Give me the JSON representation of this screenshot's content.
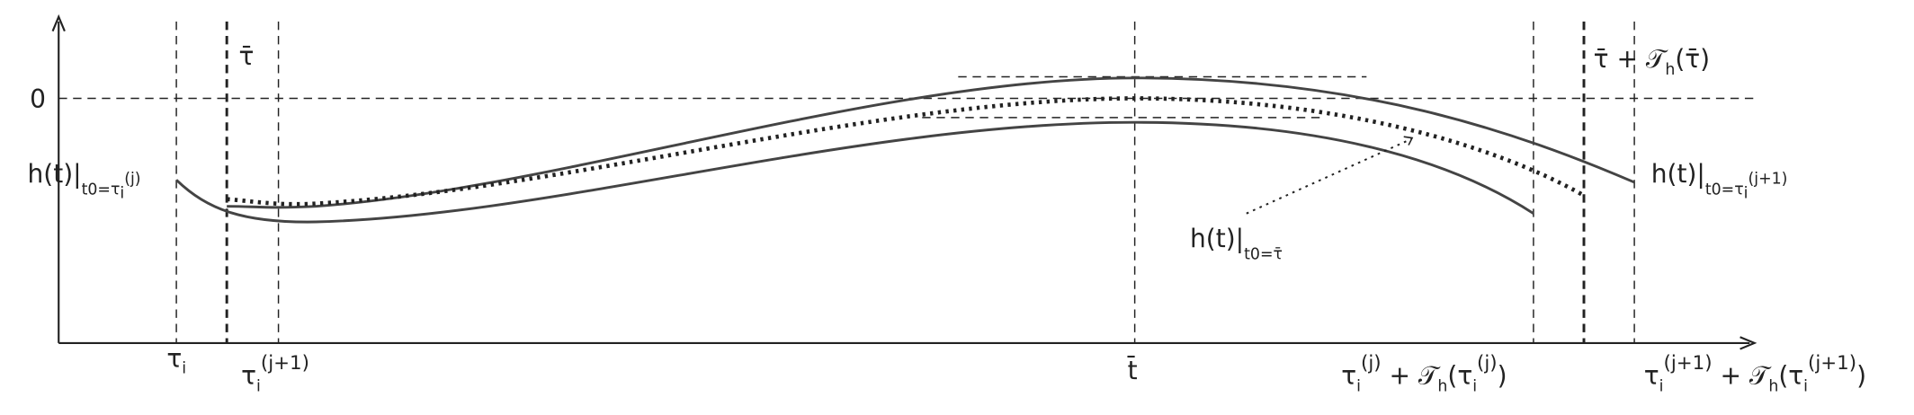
{
  "labels": {
    "zero": "0",
    "h_left": [
      "h(t)|",
      "t0=τ",
      "i",
      "(j)"
    ],
    "tau_bar": "τ̄",
    "tau_bar_plus": [
      "τ̄ + 𝒯",
      "h",
      "(τ̄)"
    ],
    "h_right": [
      "h(t)|",
      "t0=τ",
      "i",
      "(j+1)"
    ],
    "h_mid": [
      "h(t)|",
      "t0=τ̄"
    ],
    "x_tau_i": [
      "τ",
      "i"
    ],
    "x_tau_j1": [
      "τ",
      "i",
      "(j+1)"
    ],
    "x_t_bar": "t̄",
    "x_tau_j_plus": [
      "τ",
      "i",
      "(j)",
      " + 𝒯",
      "h",
      "(τ",
      "i",
      "(j)",
      ")"
    ],
    "x_tau_j1_plus": [
      "τ",
      "i",
      "(j+1)",
      " + 𝒯",
      "h",
      "(τ",
      "i",
      "(j+1)",
      ")"
    ]
  }
}
